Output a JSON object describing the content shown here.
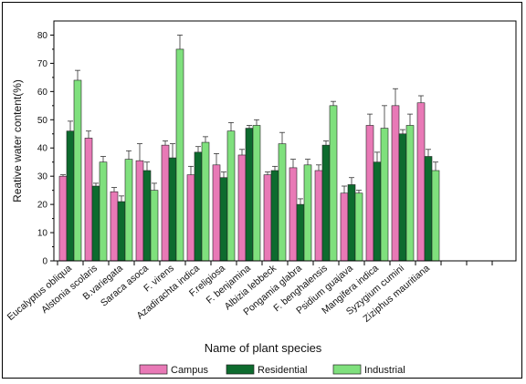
{
  "chart_data": {
    "type": "bar",
    "title": "",
    "xlabel": "Name of plant species",
    "ylabel": "Reative water content(%)",
    "ylim": [
      0,
      85
    ],
    "yticks": [
      0,
      10,
      20,
      30,
      40,
      50,
      60,
      70,
      80
    ],
    "legend_position": "bottom",
    "colors": [
      "#e879b6",
      "#0d6b2e",
      "#7fe07d"
    ],
    "categories": [
      "Eucalyptus obliqua",
      "Alstonia scolaris",
      "B.variegata",
      "Saraca asoca",
      "F. virens",
      "Azadirachta indica",
      "F.religiosa",
      "F. benjamina",
      "Albizia lebbeck",
      "Pongamia glabra",
      "F. benghalensis",
      "Psidium guajava",
      "Mangifera indica",
      "Syzygium cumini",
      "Ziziphus mauritiana"
    ],
    "series": [
      {
        "name": "Campus",
        "values": [
          30,
          43.5,
          24.5,
          35.5,
          41,
          30.5,
          34,
          37.5,
          30.5,
          33,
          32,
          24,
          48,
          55,
          56
        ],
        "errors": [
          0.5,
          2.5,
          1.5,
          6,
          1.5,
          3,
          4,
          2,
          1,
          3,
          2,
          2.5,
          4,
          6,
          2.5
        ]
      },
      {
        "name": "Residential",
        "values": [
          46,
          26.5,
          21,
          32,
          36.5,
          38.5,
          29.5,
          47,
          32,
          20,
          41,
          27,
          35,
          45,
          37
        ],
        "errors": [
          3.5,
          1,
          2,
          3,
          5,
          2,
          2,
          1,
          1.5,
          2,
          1.5,
          2.5,
          3.5,
          1.5,
          2.5
        ]
      },
      {
        "name": "Industrial",
        "values": [
          64,
          35,
          36,
          25,
          75,
          42,
          46,
          48,
          41.5,
          34,
          55,
          24,
          47,
          48,
          32
        ],
        "errors": [
          3.5,
          2,
          3,
          2.5,
          5,
          2,
          3,
          2,
          4,
          2,
          1.5,
          1,
          8,
          4,
          3
        ]
      }
    ]
  }
}
